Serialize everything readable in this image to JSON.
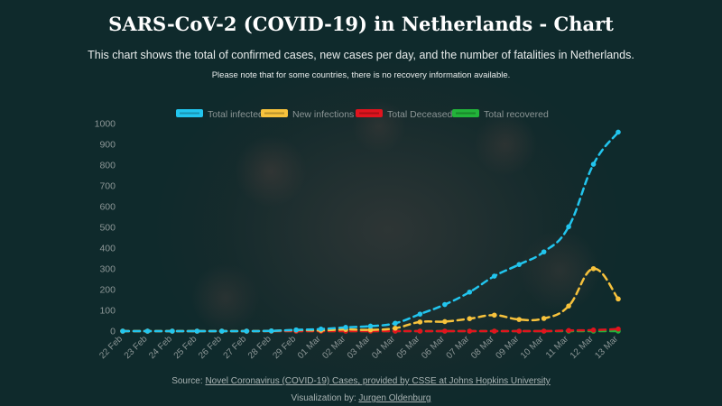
{
  "header": {
    "title": "SARS-CoV-2 (COVID-19) in Netherlands - Chart",
    "subtitle": "This chart shows the total of confirmed cases, new cases per day, and the number of fatalities in Netherlands.",
    "note": "Please note that for some countries, there is no recovery information available."
  },
  "footer": {
    "source_prefix": "Source: ",
    "source_link": "Novel Coronavirus (COVID-19) Cases, provided by CSSE at Johns Hopkins University",
    "credit_prefix": "Visualization by: ",
    "credit_link": "Jurgen Oldenburg"
  },
  "colors": {
    "background": "#0f2a2c",
    "total_infected": "#22c5ee",
    "new_infections": "#f7c23c",
    "total_deceased": "#e0141e",
    "total_recovered": "#22b33a",
    "axis_text": "#8c9696"
  },
  "chart_data": {
    "type": "line",
    "categories": [
      "22 Feb",
      "23 Feb",
      "24 Feb",
      "25 Feb",
      "26 Feb",
      "27 Feb",
      "28 Feb",
      "29 Feb",
      "01 Mar",
      "02 Mar",
      "03 Mar",
      "04 Mar",
      "05 Mar",
      "06 Mar",
      "07 Mar",
      "08 Mar",
      "09 Mar",
      "10 Mar",
      "11 Mar",
      "12 Mar",
      "13 Mar"
    ],
    "ylim": [
      0,
      1000
    ],
    "yticks": [
      0,
      100,
      200,
      300,
      400,
      500,
      600,
      700,
      800,
      900,
      1000
    ],
    "grid": false,
    "legend_position": "top",
    "series": [
      {
        "name": "Total infected",
        "color": "#22c5ee",
        "values": [
          0,
          0,
          0,
          0,
          0,
          0,
          1,
          6,
          10,
          18,
          24,
          38,
          82,
          128,
          188,
          265,
          321,
          382,
          503,
          804,
          959
        ]
      },
      {
        "name": "New infections",
        "color": "#f7c23c",
        "values": [
          0,
          0,
          0,
          0,
          0,
          0,
          1,
          5,
          4,
          8,
          6,
          14,
          44,
          46,
          60,
          77,
          56,
          61,
          121,
          301,
          155
        ]
      },
      {
        "name": "Total Deceased",
        "color": "#e0141e",
        "values": [
          0,
          0,
          0,
          0,
          0,
          0,
          0,
          0,
          0,
          0,
          0,
          0,
          0,
          0,
          0,
          0,
          0,
          0,
          3,
          5,
          10
        ]
      },
      {
        "name": "Total recovered",
        "color": "#22b33a",
        "values": [
          0,
          0,
          0,
          0,
          0,
          0,
          0,
          0,
          0,
          0,
          0,
          0,
          0,
          0,
          0,
          0,
          0,
          0,
          0,
          0,
          0
        ]
      }
    ]
  }
}
